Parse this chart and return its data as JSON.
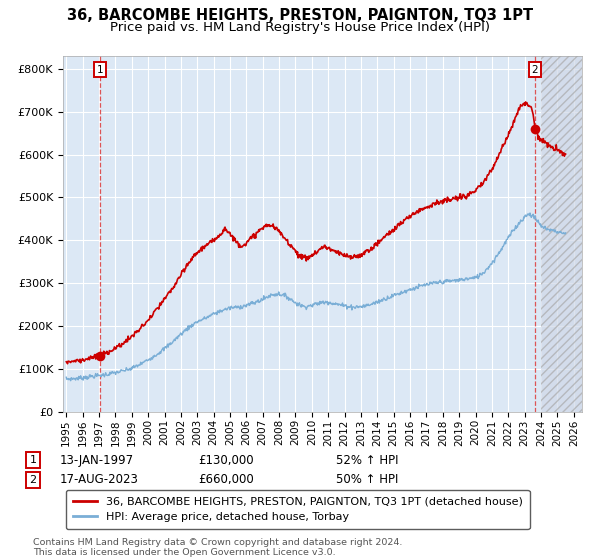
{
  "title": "36, BARCOMBE HEIGHTS, PRESTON, PAIGNTON, TQ3 1PT",
  "subtitle": "Price paid vs. HM Land Registry's House Price Index (HPI)",
  "legend_label_red": "36, BARCOMBE HEIGHTS, PRESTON, PAIGNTON, TQ3 1PT (detached house)",
  "legend_label_blue": "HPI: Average price, detached house, Torbay",
  "transaction1_date": "13-JAN-1997",
  "transaction1_price": "£130,000",
  "transaction1_hpi": "52% ↑ HPI",
  "transaction1_x": 1997.04,
  "transaction1_y": 130000,
  "transaction2_date": "17-AUG-2023",
  "transaction2_price": "£660,000",
  "transaction2_hpi": "50% ↑ HPI",
  "transaction2_x": 2023.62,
  "transaction2_y": 660000,
  "ylabel_ticks": [
    "£0",
    "£100K",
    "£200K",
    "£300K",
    "£400K",
    "£500K",
    "£600K",
    "£700K",
    "£800K"
  ],
  "ytick_vals": [
    0,
    100000,
    200000,
    300000,
    400000,
    500000,
    600000,
    700000,
    800000
  ],
  "ylim": [
    0,
    830000
  ],
  "xlim_min": 1994.8,
  "xlim_max": 2026.5,
  "hatch_start": 2024.0,
  "background_color": "#ffffff",
  "plot_bg_color": "#dce8f5",
  "grid_color": "#ffffff",
  "red_line_color": "#cc0000",
  "blue_line_color": "#7aaed6",
  "dashed_line_color": "#dd4444",
  "footer_text": "Contains HM Land Registry data © Crown copyright and database right 2024.\nThis data is licensed under the Open Government Licence v3.0."
}
